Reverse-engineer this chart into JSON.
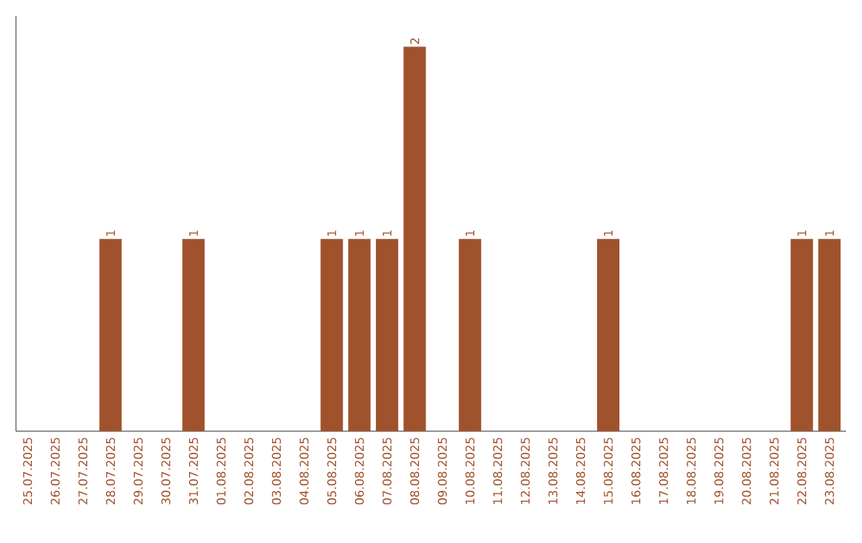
{
  "chart_data": {
    "type": "bar",
    "categories": [
      "25.07.2025",
      "26.07.2025",
      "27.07.2025",
      "28.07.2025",
      "29.07.2025",
      "30.07.2025",
      "31.07.2025",
      "01.08.2025",
      "02.08.2025",
      "03.08.2025",
      "04.08.2025",
      "05.08.2025",
      "06.08.2025",
      "07.08.2025",
      "08.08.2025",
      "09.08.2025",
      "10.08.2025",
      "11.08.2025",
      "12.08.2025",
      "13.08.2025",
      "14.08.2025",
      "15.08.2025",
      "16.08.2025",
      "17.08.2025",
      "18.08.2025",
      "19.08.2025",
      "20.08.2025",
      "21.08.2025",
      "22.08.2025",
      "23.08.2025"
    ],
    "values": [
      0,
      0,
      0,
      1,
      0,
      0,
      1,
      0,
      0,
      0,
      0,
      1,
      1,
      1,
      2,
      0,
      1,
      0,
      0,
      0,
      0,
      1,
      0,
      0,
      0,
      0,
      0,
      0,
      1,
      1
    ],
    "value_labels": [
      null,
      null,
      null,
      "1",
      null,
      null,
      "1",
      null,
      null,
      null,
      null,
      "1",
      "1",
      "1",
      "2",
      null,
      "1",
      null,
      null,
      null,
      null,
      "1",
      null,
      null,
      null,
      null,
      null,
      null,
      "1",
      "1"
    ],
    "color": "#a0522d",
    "tick_labels": "x",
    "grid": false
  }
}
